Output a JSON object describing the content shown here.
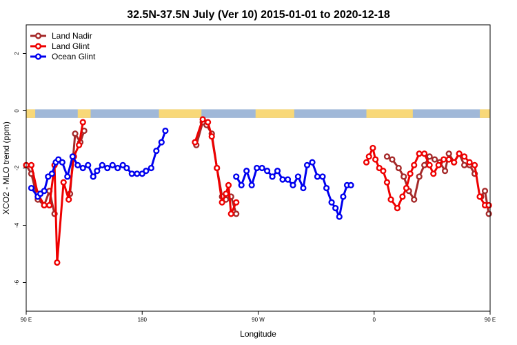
{
  "chart_data": {
    "type": "line",
    "title": "32.5N-37.5N July (Ver 10)   2015-01-01 to 2020-12-18",
    "xlabel": "Longitude",
    "ylabel": "XCO2 - MLO trend (ppm)",
    "xlim": [
      90,
      450
    ],
    "ylim": [
      -7,
      3
    ],
    "x_ticks": [
      {
        "value": 90,
        "label": "90 E"
      },
      {
        "value": 180,
        "label": "180"
      },
      {
        "value": 270,
        "label": "90 W"
      },
      {
        "value": 360,
        "label": "0"
      },
      {
        "value": 450,
        "label": "90 E"
      },
      {
        "value": 540,
        "label": "180"
      }
    ],
    "y_ticks": [
      {
        "value": -6,
        "label": "-6"
      },
      {
        "value": -4,
        "label": "-4"
      },
      {
        "value": -2,
        "label": "-2"
      },
      {
        "value": 0,
        "label": "0"
      },
      {
        "value": 2,
        "label": "2"
      }
    ],
    "legend_position": "top-left",
    "grid": false,
    "surface_band": {
      "y_range": [
        -0.25,
        0.05
      ],
      "land_color": "#F8D878",
      "ocean_color": "#A0B8D8",
      "land_segments": [
        [
          90,
          97
        ],
        [
          130,
          140
        ],
        [
          193,
          226
        ],
        [
          268,
          298
        ],
        [
          354,
          390
        ],
        [
          442,
          450
        ]
      ]
    },
    "series": [
      {
        "name": "Land Nadir",
        "color": "#A52A2A",
        "segments": [
          [
            [
              90,
              -1.9
            ],
            [
              94,
              -2.2
            ],
            [
              99,
              -3.1
            ],
            [
              104,
              -3.3
            ],
            [
              108,
              -2.8
            ],
            [
              112,
              -3.6
            ]
          ],
          [
            [
              124,
              -2.9
            ],
            [
              128,
              -0.8
            ],
            [
              132,
              -1.1
            ],
            [
              135,
              -0.7
            ]
          ],
          [
            [
              222,
              -1.2
            ],
            [
              227,
              -0.4
            ],
            [
              230,
              -0.5
            ],
            [
              234,
              -0.8
            ],
            [
              238,
              -2.0
            ],
            [
              242,
              -3.0
            ],
            [
              245,
              -3.1
            ],
            [
              249,
              -3.0
            ],
            [
              253,
              -3.6
            ]
          ],
          [
            [
              370,
              -1.6
            ],
            [
              374,
              -1.7
            ],
            [
              379,
              -2.0
            ],
            [
              383,
              -2.3
            ],
            [
              387,
              -2.8
            ],
            [
              391,
              -3.1
            ],
            [
              395,
              -2.3
            ],
            [
              399,
              -1.9
            ],
            [
              403,
              -1.6
            ],
            [
              407,
              -1.7
            ],
            [
              411,
              -1.8
            ],
            [
              415,
              -2.1
            ],
            [
              418,
              -1.5
            ],
            [
              422,
              -1.8
            ],
            [
              426,
              -1.5
            ],
            [
              430,
              -1.9
            ],
            [
              434,
              -1.9
            ],
            [
              438,
              -2.2
            ]
          ],
          [
            [
              443,
              -3.0
            ],
            [
              446,
              -2.8
            ],
            [
              449,
              -3.6
            ]
          ]
        ]
      },
      {
        "name": "Land Glint",
        "color": "#EE0000",
        "segments": [
          [
            [
              90,
              -1.9
            ],
            [
              94,
              -1.9
            ],
            [
              99,
              -2.9
            ],
            [
              104,
              -3.3
            ],
            [
              108,
              -3.3
            ],
            [
              112,
              -1.9
            ],
            [
              114,
              -5.3
            ],
            [
              119,
              -2.5
            ],
            [
              123,
              -3.1
            ],
            [
              127,
              -1.6
            ],
            [
              131,
              -1.2
            ],
            [
              134,
              -0.4
            ]
          ],
          [
            [
              221,
              -1.1
            ],
            [
              227,
              -0.3
            ],
            [
              231,
              -0.4
            ],
            [
              234,
              -0.9
            ],
            [
              238,
              -2.0
            ],
            [
              242,
              -3.2
            ],
            [
              245,
              -2.9
            ],
            [
              247,
              -2.6
            ],
            [
              249,
              -3.6
            ],
            [
              253,
              -3.2
            ]
          ],
          [
            [
              354,
              -1.8
            ],
            [
              356,
              -1.6
            ],
            [
              359,
              -1.3
            ],
            [
              361,
              -1.7
            ],
            [
              364,
              -2.0
            ],
            [
              367,
              -2.1
            ],
            [
              370,
              -2.5
            ],
            [
              373,
              -3.1
            ],
            [
              378,
              -3.4
            ],
            [
              382,
              -3.0
            ],
            [
              385,
              -2.7
            ],
            [
              388,
              -2.2
            ],
            [
              391,
              -1.9
            ],
            [
              395,
              -1.5
            ],
            [
              399,
              -1.5
            ],
            [
              403,
              -1.9
            ],
            [
              406,
              -2.2
            ],
            [
              410,
              -1.9
            ],
            [
              414,
              -1.7
            ],
            [
              418,
              -1.7
            ],
            [
              422,
              -1.8
            ],
            [
              426,
              -1.5
            ],
            [
              430,
              -1.6
            ],
            [
              434,
              -1.8
            ],
            [
              438,
              -1.9
            ],
            [
              442,
              -3.0
            ],
            [
              446,
              -3.3
            ],
            [
              449,
              -3.3
            ]
          ]
        ]
      },
      {
        "name": "Ocean Glint",
        "color": "#0000EE",
        "segments": [
          [
            [
              94,
              -2.7
            ],
            [
              99,
              -3.0
            ],
            [
              101,
              -2.9
            ],
            [
              104,
              -2.8
            ],
            [
              107,
              -2.3
            ],
            [
              110,
              -2.2
            ],
            [
              113,
              -1.8
            ],
            [
              115,
              -1.7
            ],
            [
              118,
              -1.8
            ],
            [
              122,
              -2.3
            ],
            [
              126,
              -1.6
            ],
            [
              130,
              -1.9
            ],
            [
              134,
              -2.0
            ],
            [
              138,
              -1.9
            ],
            [
              142,
              -2.3
            ],
            [
              145,
              -2.1
            ],
            [
              149,
              -1.9
            ],
            [
              153,
              -2.0
            ],
            [
              157,
              -1.9
            ],
            [
              161,
              -2.0
            ],
            [
              165,
              -1.9
            ],
            [
              168,
              -2.0
            ],
            [
              172,
              -2.2
            ],
            [
              176,
              -2.2
            ],
            [
              180,
              -2.2
            ],
            [
              183,
              -2.1
            ],
            [
              187,
              -2.0
            ],
            [
              191,
              -1.4
            ],
            [
              195,
              -1.1
            ],
            [
              198,
              -0.7
            ]
          ],
          [
            [
              253,
              -2.3
            ],
            [
              257,
              -2.6
            ],
            [
              261,
              -2.1
            ],
            [
              265,
              -2.6
            ],
            [
              269,
              -2.0
            ],
            [
              273,
              -2.0
            ],
            [
              277,
              -2.1
            ],
            [
              281,
              -2.3
            ],
            [
              285,
              -2.1
            ],
            [
              289,
              -2.4
            ],
            [
              293,
              -2.4
            ],
            [
              297,
              -2.6
            ],
            [
              301,
              -2.3
            ],
            [
              305,
              -2.7
            ],
            [
              308,
              -1.9
            ],
            [
              312,
              -1.8
            ],
            [
              316,
              -2.3
            ],
            [
              320,
              -2.3
            ],
            [
              323,
              -2.7
            ],
            [
              327,
              -3.2
            ],
            [
              330,
              -3.4
            ],
            [
              333,
              -3.7
            ],
            [
              336,
              -3.0
            ],
            [
              339,
              -2.6
            ],
            [
              342,
              -2.6
            ]
          ]
        ]
      }
    ]
  }
}
